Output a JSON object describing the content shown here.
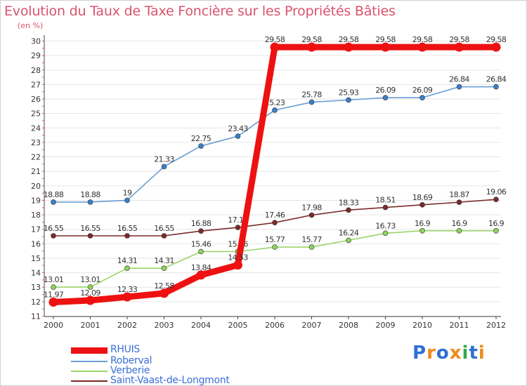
{
  "title": "Evolution du Taux de Taxe Foncière sur les Propriétés Bâties",
  "unit_label": "(en %)",
  "logo_text": [
    "P",
    "r",
    "o",
    "x",
    "i",
    "t",
    "i"
  ],
  "logo_colors": [
    "#2f6fd6",
    "#f08a1c",
    "#2f6fd6",
    "#f08a1c",
    "#2fa84f",
    "#2f6fd6",
    "#f08a1c"
  ],
  "chart_data": {
    "type": "line",
    "title": "Evolution du Taux de Taxe Foncière sur les Propriétés Bâties",
    "xlabel": "",
    "ylabel": "(en %)",
    "ylim": [
      11,
      30
    ],
    "yticks": [
      11,
      12,
      13,
      14,
      15,
      16,
      17,
      18,
      19,
      20,
      21,
      22,
      23,
      24,
      25,
      26,
      27,
      28,
      29,
      30
    ],
    "grid": "horizontal",
    "categories": [
      "2000",
      "2001",
      "2002",
      "2003",
      "2004",
      "2005",
      "2006",
      "2007",
      "2008",
      "2009",
      "2010",
      "2011",
      "2012"
    ],
    "series": [
      {
        "name": "Saint-Vaast-de-Longmont",
        "color": "#7b2a2a",
        "marker": "#7b2a2a",
        "values": [
          16.55,
          16.55,
          16.55,
          16.55,
          16.88,
          17.13,
          17.46,
          17.98,
          18.33,
          18.51,
          18.69,
          18.87,
          19.06
        ],
        "labels": [
          "16.55",
          "16.55",
          "16.55",
          "16.55",
          "16.88",
          "17.13",
          "17.46",
          "17.98",
          "18.33",
          "18.51",
          "18.69",
          "18.87",
          "19.06"
        ]
      },
      {
        "name": "Verberie",
        "color": "#9ad46a",
        "marker": "#8ed25c",
        "values": [
          13.01,
          13.01,
          14.31,
          14.31,
          15.46,
          15.46,
          15.77,
          15.77,
          16.24,
          16.73,
          16.9,
          16.9,
          16.9
        ],
        "labels": [
          "13.01",
          "13.01",
          "14.31",
          "14.31",
          "15.46",
          "15.46",
          "15.77",
          "15.77",
          "16.24",
          "16.73",
          "16.9",
          "16.9",
          "16.9"
        ]
      },
      {
        "name": "Roberval",
        "color": "#6a9fd8",
        "marker": "#3a7fc8",
        "values": [
          18.88,
          18.88,
          19,
          21.33,
          22.75,
          23.43,
          25.23,
          25.78,
          25.93,
          26.09,
          26.09,
          26.84,
          26.84
        ],
        "labels": [
          "18.88",
          "18.88",
          "19",
          "21.33",
          "22.75",
          "23.43",
          "25.23",
          "25.78",
          "25.93",
          "26.09",
          "26.09",
          "26.84",
          "26.84"
        ]
      },
      {
        "name": "RHUIS",
        "color": "#ee1111",
        "marker": "#ee1111",
        "values": [
          11.97,
          12.09,
          12.33,
          12.58,
          13.84,
          14.53,
          29.58,
          29.58,
          29.58,
          29.58,
          29.58,
          29.58,
          29.58
        ],
        "labels": [
          "11.97",
          "12.09",
          "12.33",
          "12.58",
          "13.84",
          "14.53",
          "29.58",
          "29.58",
          "29.58",
          "29.58",
          "29.58",
          "29.58",
          "29.58"
        ]
      }
    ]
  },
  "legend": [
    {
      "name": "RHUIS",
      "color": "#ee1111"
    },
    {
      "name": "Roberval",
      "color": "#6a9fd8"
    },
    {
      "name": "Verberie",
      "color": "#9ad46a"
    },
    {
      "name": "Saint-Vaast-de-Longmont",
      "color": "#7b2a2a"
    }
  ]
}
